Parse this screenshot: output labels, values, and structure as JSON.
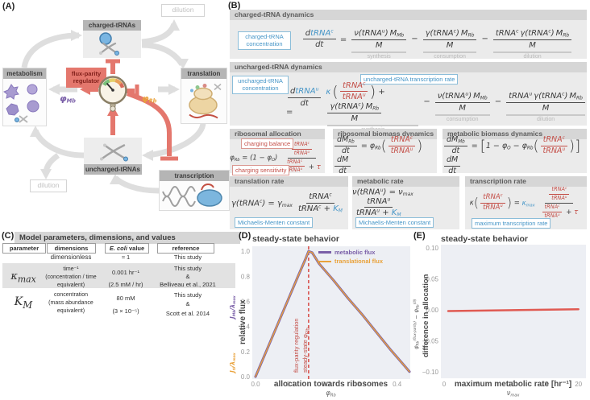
{
  "labels": {
    "a": "(A)",
    "b": "(B)",
    "c": "(C)",
    "d": "(D)",
    "e": "(E)"
  },
  "colors": {
    "accent_red": "#e4776d",
    "purple": "#7a5fa8",
    "orange": "#e9a23b",
    "blue_annotation": "#4595c7",
    "red_annotation": "#c44f48",
    "chart_background": "#edeff4",
    "dashed_red": "#d95550",
    "flat_line_red": "#e05a52"
  },
  "diagram": {
    "nodes": {
      "charged": "charged-tRNAs",
      "metabolism": "metabolism",
      "translation": "translation",
      "uncharged": "uncharged-tRNAs",
      "transcription": "transcription"
    },
    "dilution_top": "dilution",
    "dilution_bottom": "dilution",
    "regulator": "flux-parity\nregulator",
    "phi_mb": "φ_{Mb}",
    "phi_rb": "φ_{Rb}"
  },
  "equations": {
    "charged": {
      "title": "charged-tRNA dynamics",
      "annotation": "charged-tRNA\nconcentration",
      "lhs": "\\frac{d@b{tRNA^{c}}}{dt} =",
      "terms": [
        {
          "op": "",
          "math": "\\frac{ν(tRNA^{u}) M_{Mb}}{M}",
          "label": "synthesis"
        },
        {
          "op": "−",
          "math": "\\frac{γ(tRNA^{c}) M_{Rb}}{M}",
          "label": "consumption"
        },
        {
          "op": "−",
          "math": "\\frac{tRNA^{c} γ(tRNA^{c}) M_{Rb}}{M}",
          "label": "dilution"
        }
      ]
    },
    "uncharged": {
      "title": "uncharged-tRNA dynamics",
      "annotation_left": "uncharged-tRNA\nconcentration",
      "annotation_top": "uncharged-tRNA transcription rate",
      "lhs": "\\frac{d@b{tRNA^{u}}}{dt} =",
      "terms": [
        {
          "op": "",
          "math": "@b{κ} @(\\rfrac{tRNA^{c}}{tRNA^{u}}@) + \\frac{γ(tRNA^{c}) M_{Rb}}{M}",
          "label": "synthesis"
        },
        {
          "op": "−",
          "math": "\\frac{ν(tRNA^{u}) M_{Mb}}{M}",
          "label": "consumption"
        },
        {
          "op": "−",
          "math": "\\frac{tRNA^{u} γ(tRNA^{c}) M_{Rb}}{M}",
          "label": "dilution"
        }
      ]
    },
    "allocation": {
      "title": "ribosomal allocation",
      "annotation_top": "charging balance",
      "annotation_bottom": "charging sensitivity",
      "math": "φ_{Rb} = (1 − φ_{O}) \\frac{\\rfrac{tRNA^{c}}{tRNA^{u}}}{\\rfrac{tRNA^{c}}{tRNA^{u}} + @r{τ}}"
    },
    "ribosomal_biomass": {
      "title": "ribosomal biomass dynamics",
      "math": "\\frac{dM_{Rb}}{dt} = φ_{Rb}@(\\rfrac{tRNA^{c}}{tRNA^{u}}@) \\frac{dM}{dt}"
    },
    "metabolic_biomass": {
      "title": "metabolic biomass dynamics",
      "math": "\\frac{dM_{Mb}}{dt} = @[1 − φ_{O} − φ_{Rb}@(\\rfrac{tRNA^{c}}{tRNA^{u}}@)@] \\frac{dM}{dt}"
    },
    "translation_rate": {
      "title": "translation rate",
      "annotation": "Michaelis-Menten constant",
      "math": "γ(tRNA^{c}) = γ_{max} \\frac{tRNA^{c}}{tRNA^{c} + @b{K_{M}}}"
    },
    "metabolic_rate": {
      "title": "metabolic rate",
      "annotation": "Michaelis-Menten constant",
      "math": "ν(tRNA^{u}) = ν_{max} \\frac{tRNA^{u}}{tRNA^{u} + @b{K_{M}}}"
    },
    "transcription_rate": {
      "title": "transcription rate",
      "annotation": "maximum transcription rate",
      "math": "κ@(\\rfrac{tRNA^{c}}{tRNA^{u}}@) = @b{κ_{max}} \\frac{\\rfrac{tRNA^{c}}{tRNA^{u}}}{\\rfrac{tRNA^{c}}{tRNA^{u}} + @r{τ}}"
    }
  },
  "table": {
    "title": "Model parameters, dimensions, and values",
    "headers": {
      "parameter": "parameter",
      "dimensions": "dimensions",
      "value": "@i{E. coli} value",
      "reference": "reference"
    },
    "rows": [
      {
        "parameter": "τ",
        "dimensions": "dimensionless",
        "value": "≈ 1",
        "reference": "This study"
      },
      {
        "parameter": "κ_{max}",
        "dimensions": "time⁻¹\n(concentration / time\nequivalent)",
        "value": "0.001 hr⁻¹\n(2.5 mM / hr)",
        "reference": "This study\n&\nBelliveau et al., 2021"
      },
      {
        "parameter": "K_{M}",
        "dimensions": "concentration\n(mass abundance\nequivalent)",
        "value": "80 mM\n(3 × 10⁻⁵)",
        "reference": "This study\n&\nScott et al. 2014"
      }
    ]
  },
  "chart_data": [
    {
      "type": "line",
      "panel": "D",
      "title": "steady-state behavior",
      "xlabel": "allocation towards ribosomes",
      "xlabel_symbol": "φ_{Rb}",
      "ylabel": "relative flux",
      "ylabel_metabolic": "J_{Mb}/λ_{max}",
      "ylabel_translational": "J_{tl}/λ_{max}",
      "xlim": [
        0,
        0.435
      ],
      "ylim": [
        0,
        1.04
      ],
      "xticks": [
        0,
        0.1,
        0.2,
        0.3,
        0.4
      ],
      "xtick_labels": [
        "0.0",
        "0.1",
        "0.2",
        "0.3",
        "0.4"
      ],
      "yticks": [
        0,
        0.2,
        0.4,
        0.6,
        0.8,
        1
      ],
      "ytick_labels": [
        "0.0",
        "0.2",
        "0.4",
        "0.6",
        "0.8",
        "1.0"
      ],
      "grid": false,
      "legend_position": "upper right",
      "vline": {
        "x": 0.15,
        "color": "#d95550",
        "label_line1": "flux-parity regulation",
        "label_line2": "steady-state φ_{Rb}"
      },
      "series": [
        {
          "name": "metabolic flux",
          "color": "#7a5fa8",
          "width": 3,
          "x": [
            0,
            0.03,
            0.06,
            0.09,
            0.12,
            0.14,
            0.15,
            0.16,
            0.18,
            0.22,
            0.26,
            0.3,
            0.34,
            0.38,
            0.42,
            0.435
          ],
          "y": [
            0,
            0.2,
            0.4,
            0.6,
            0.8,
            0.93,
            1.0,
            0.99,
            0.9,
            0.77,
            0.63,
            0.5,
            0.36,
            0.22,
            0.09,
            0.04
          ]
        },
        {
          "name": "translational flux",
          "color": "#e9a23b",
          "width": 1.4,
          "x": [
            0,
            0.03,
            0.06,
            0.09,
            0.12,
            0.14,
            0.15,
            0.16,
            0.18,
            0.22,
            0.26,
            0.3,
            0.34,
            0.38,
            0.42,
            0.435
          ],
          "y": [
            0,
            0.2,
            0.4,
            0.6,
            0.8,
            0.93,
            1.0,
            0.99,
            0.9,
            0.77,
            0.63,
            0.5,
            0.36,
            0.22,
            0.09,
            0.04
          ]
        }
      ]
    },
    {
      "type": "line",
      "panel": "E",
      "title": "steady-state behavior",
      "xlabel": "maximum metabolic rate [hr⁻¹]",
      "xlabel_symbol": "ν_{max}",
      "ylabel_symbolic": "φ_{Rb}^{(flux-parity)} − φ_{Rb}^{(III)}",
      "ylabel": "difference in allocation",
      "xlim": [
        0,
        21
      ],
      "ylim": [
        -0.105,
        0.105
      ],
      "xticks": [
        0,
        5,
        10,
        15,
        20
      ],
      "xtick_labels": [
        "0",
        "5",
        "10",
        "15",
        "20"
      ],
      "yticks": [
        -0.1,
        -0.05,
        0,
        0.05,
        0.1
      ],
      "ytick_labels": [
        "−0.10",
        "−0.05",
        "0.00",
        "0.05",
        "0.10"
      ],
      "grid": false,
      "series": [
        {
          "name": "allocation difference",
          "color": "#e05a52",
          "width": 2.5,
          "x": [
            0.6,
            20
          ],
          "y": [
            -0.002,
            0.001
          ]
        }
      ]
    }
  ]
}
